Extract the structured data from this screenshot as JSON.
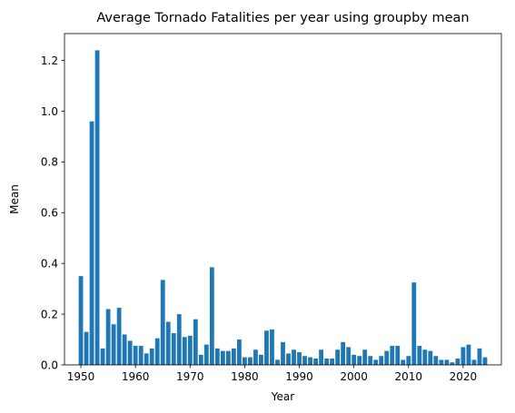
{
  "chart_data": {
    "type": "bar",
    "title": "Average Tornado Fatalities per year using groupby mean",
    "xlabel": "Year",
    "ylabel": "Mean",
    "xlim": [
      1947.0,
      2027.0
    ],
    "ylim": [
      0,
      1.306
    ],
    "xticks": [
      1950,
      1960,
      1970,
      1980,
      1990,
      2000,
      2010,
      2020
    ],
    "yticks": [
      0.0,
      0.2,
      0.4,
      0.6,
      0.8,
      1.0,
      1.2
    ],
    "ytick_labels": [
      "0.0",
      "0.2",
      "0.4",
      "0.6",
      "0.8",
      "1.0",
      "1.2"
    ],
    "grid": false,
    "bar_color": "#1f77b4",
    "x": [
      1950,
      1951,
      1952,
      1953,
      1954,
      1955,
      1956,
      1957,
      1958,
      1959,
      1960,
      1961,
      1962,
      1963,
      1964,
      1965,
      1966,
      1967,
      1968,
      1969,
      1970,
      1971,
      1972,
      1973,
      1974,
      1975,
      1976,
      1977,
      1978,
      1979,
      1980,
      1981,
      1982,
      1983,
      1984,
      1985,
      1986,
      1987,
      1988,
      1989,
      1990,
      1991,
      1992,
      1993,
      1994,
      1995,
      1996,
      1997,
      1998,
      1999,
      2000,
      2001,
      2002,
      2003,
      2004,
      2005,
      2006,
      2007,
      2008,
      2009,
      2010,
      2011,
      2012,
      2013,
      2014,
      2015,
      2016,
      2017,
      2018,
      2019,
      2020,
      2021,
      2022,
      2023,
      2024
    ],
    "values": [
      0.35,
      0.13,
      0.96,
      1.24,
      0.065,
      0.22,
      0.16,
      0.225,
      0.12,
      0.095,
      0.075,
      0.075,
      0.045,
      0.065,
      0.105,
      0.335,
      0.17,
      0.125,
      0.2,
      0.11,
      0.115,
      0.18,
      0.04,
      0.08,
      0.385,
      0.065,
      0.055,
      0.055,
      0.065,
      0.1,
      0.03,
      0.03,
      0.06,
      0.04,
      0.135,
      0.14,
      0.02,
      0.09,
      0.045,
      0.06,
      0.05,
      0.035,
      0.03,
      0.025,
      0.06,
      0.025,
      0.025,
      0.06,
      0.09,
      0.07,
      0.04,
      0.035,
      0.06,
      0.035,
      0.02,
      0.035,
      0.055,
      0.075,
      0.075,
      0.02,
      0.035,
      0.325,
      0.075,
      0.06,
      0.055,
      0.035,
      0.02,
      0.02,
      0.01,
      0.025,
      0.07,
      0.08,
      0.02,
      0.065,
      0.03
    ]
  }
}
